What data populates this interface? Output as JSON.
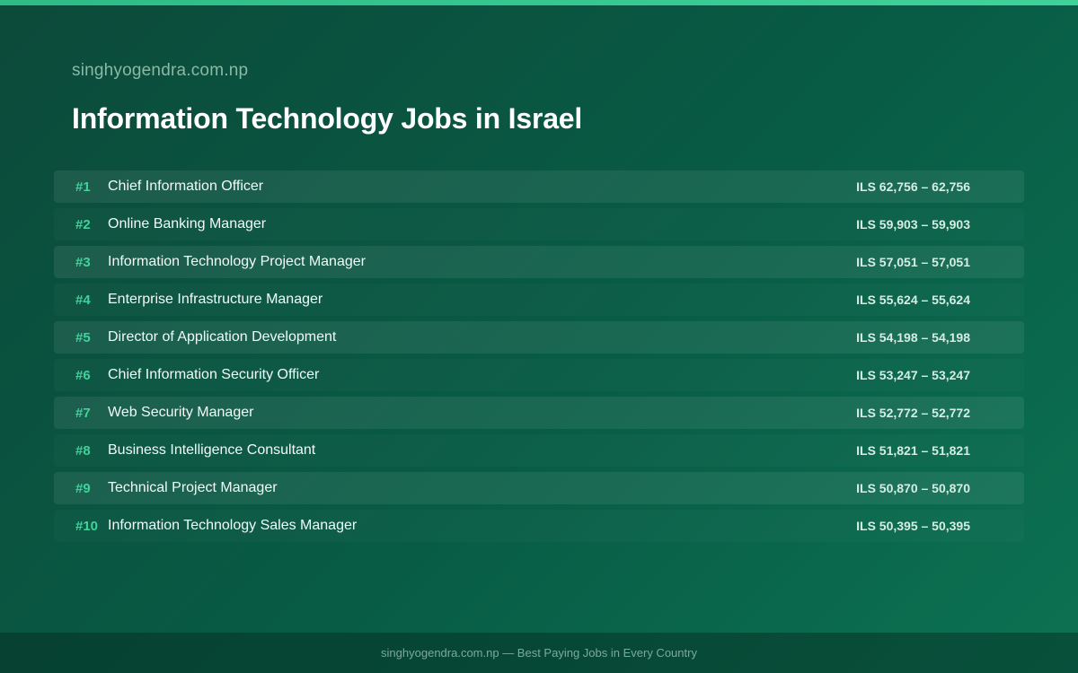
{
  "site": "singhyogendra.com.np",
  "title": "Information Technology Jobs in Israel",
  "jobs": [
    {
      "rank": "#1",
      "title": "Chief Information Officer",
      "salary": "ILS 62,756 – 62,756"
    },
    {
      "rank": "#2",
      "title": "Online Banking Manager",
      "salary": "ILS 59,903 – 59,903"
    },
    {
      "rank": "#3",
      "title": "Information Technology Project Manager",
      "salary": "ILS 57,051 – 57,051"
    },
    {
      "rank": "#4",
      "title": "Enterprise Infrastructure Manager",
      "salary": "ILS 55,624 – 55,624"
    },
    {
      "rank": "#5",
      "title": "Director of Application Development",
      "salary": "ILS 54,198 – 54,198"
    },
    {
      "rank": "#6",
      "title": "Chief Information Security Officer",
      "salary": "ILS 53,247 – 53,247"
    },
    {
      "rank": "#7",
      "title": "Web Security Manager",
      "salary": "ILS 52,772 – 52,772"
    },
    {
      "rank": "#8",
      "title": "Business Intelligence Consultant",
      "salary": "ILS 51,821 – 51,821"
    },
    {
      "rank": "#9",
      "title": "Technical Project Manager",
      "salary": "ILS 50,870 – 50,870"
    },
    {
      "rank": "#10",
      "title": "Information Technology Sales Manager",
      "salary": "ILS 50,395 – 50,395"
    }
  ],
  "footer": "singhyogendra.com.np — Best Paying Jobs in Every Country",
  "colors": {
    "accent": "#3fd39a",
    "background": "#085c45"
  }
}
